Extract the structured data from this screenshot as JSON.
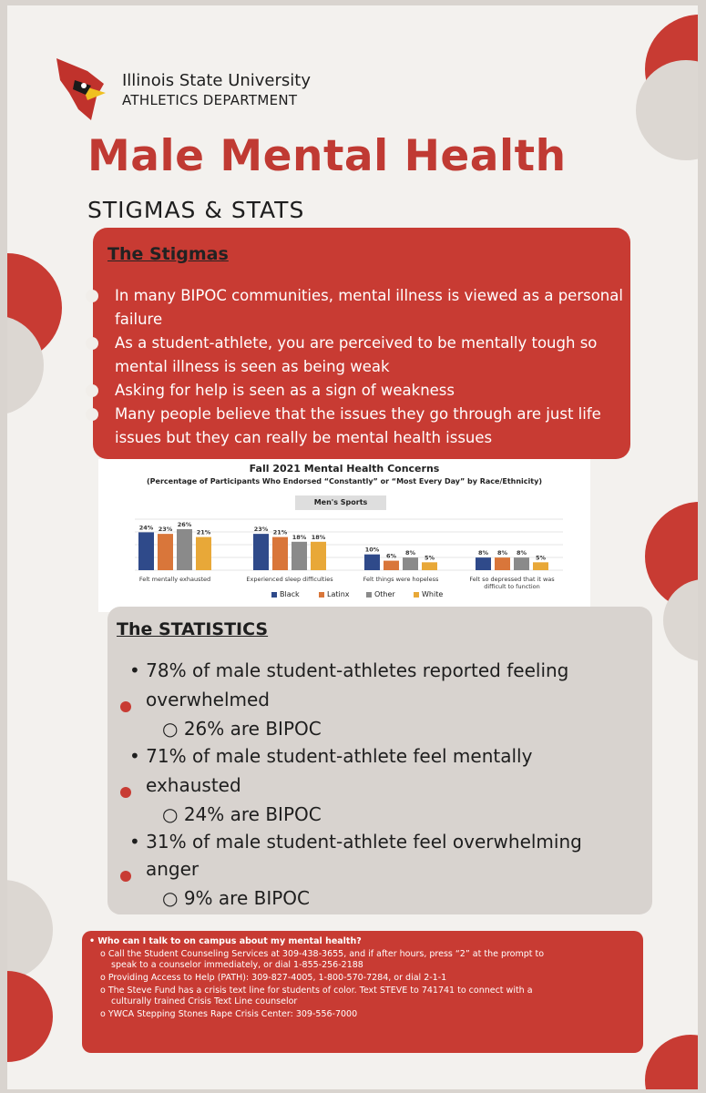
{
  "header": {
    "university": "Illinois State University",
    "department": "ATHLETICS DEPARTMENT",
    "title": "Male Mental Health",
    "subtitle": "STIGMAS & STATS"
  },
  "stigmas": {
    "heading": "The Stigmas",
    "items": [
      "In many BIPOC communities, mental illness is viewed as a personal failure",
      "As a student-athlete, you are perceived to be mentally tough so mental illness is seen as being weak",
      "Asking for help is seen as a sign of weakness",
      "Many people believe that the issues they go through are just life issues but they can really be mental health issues"
    ]
  },
  "chart_data": {
    "type": "bar",
    "title": "Fall 2021 Mental Health Concerns",
    "subtitle": "(Percentage of Participants Who Endorsed “Constantly” or “Most Every Day” by Race/Ethnicity)",
    "tab": "Men's Sports",
    "categories": [
      "Felt mentally exhausted",
      "Experienced sleep difficulties",
      "Felt things were hopeless",
      "Felt so depressed that it was difficult to function"
    ],
    "series": [
      {
        "name": "Black",
        "color": "#2f4a8a",
        "values": [
          24,
          23,
          10,
          8
        ]
      },
      {
        "name": "Latinx",
        "color": "#d9763a",
        "values": [
          23,
          21,
          6,
          8
        ]
      },
      {
        "name": "Other",
        "color": "#8a8a8a",
        "values": [
          26,
          18,
          8,
          8
        ]
      },
      {
        "name": "White",
        "color": "#e8a838",
        "values": [
          21,
          18,
          5,
          5
        ]
      }
    ],
    "ylim": [
      0,
      30
    ],
    "legend": "bottom"
  },
  "statistics": {
    "heading": "The STATISTICS",
    "items": [
      {
        "text": "78% of male student-athletes reported feeling",
        "cont": "overwhelmed",
        "sub": "26% are BIPOC"
      },
      {
        "text": "71% of male student-athlete feel mentally",
        "cont": "exhausted",
        "sub": "24% are BIPOC"
      },
      {
        "text": "31% of male student-athlete feel overwhelming",
        "cont": "anger",
        "sub": "9% are BIPOC"
      }
    ]
  },
  "help": {
    "question": "Who can I talk to on campus about my mental health?",
    "lines": [
      "Call the Student Counseling Services at 309-438-3655, and if after hours, press “2” at the prompt to",
      "speak to a counselor immediately, or dial 1-855-256-2188",
      "Providing Access to Help (PATH): 309-827-4005, 1-800-570-7284, or dial 2-1-1",
      "The Steve Fund has a crisis text line for students of color. Text STEVE to 741741 to connect with a",
      "culturally trained Crisis Text Line counselor",
      "YWCA Stepping Stones Rape Crisis Center: 309-556-7000"
    ]
  }
}
